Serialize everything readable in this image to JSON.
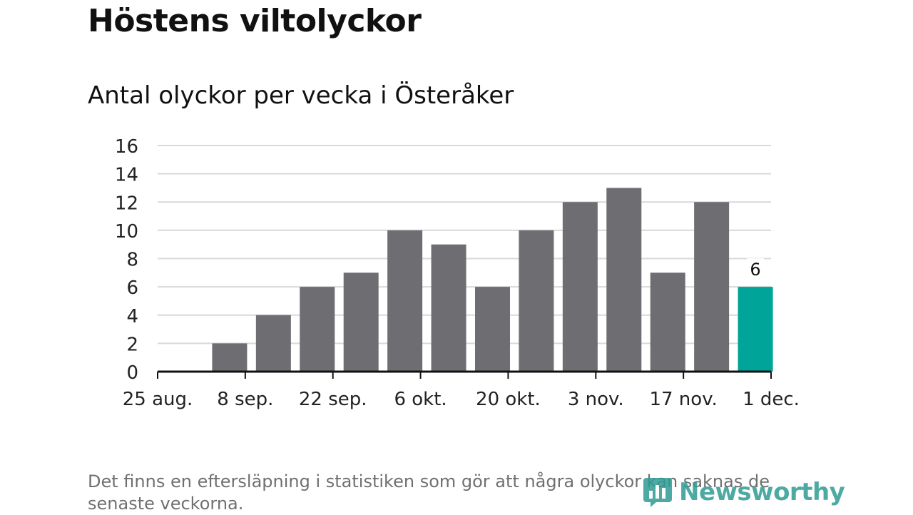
{
  "header": {
    "title": "Höstens viltolyckor",
    "subtitle": "Antal olyckor per vecka i Österåker"
  },
  "footnote": "Det finns en eftersläpning i statistiken som gör att några olyckor kan saknas de senaste veckorna.",
  "logo": {
    "text": "Newsworthy",
    "icon": "newsworthy-logo-icon"
  },
  "colors": {
    "bar": "#6e6d72",
    "highlight": "#00a499",
    "grid": "#d9d9d9",
    "axis": "#111111",
    "logo": "#2e9c93"
  },
  "chart_data": {
    "type": "bar",
    "title": "Antal olyckor per vecka i Österåker",
    "xlabel": "",
    "ylabel": "",
    "x_axis": {
      "type": "date",
      "range": [
        "2019-08-25",
        "2019-12-01"
      ],
      "ticks": [
        {
          "date": "2019-08-25",
          "label": "25 aug."
        },
        {
          "date": "2019-09-08",
          "label": "8 sep."
        },
        {
          "date": "2019-09-22",
          "label": "22 sep."
        },
        {
          "date": "2019-10-06",
          "label": "6 okt."
        },
        {
          "date": "2019-10-20",
          "label": "20 okt."
        },
        {
          "date": "2019-11-03",
          "label": "3 nov."
        },
        {
          "date": "2019-11-17",
          "label": "17 nov."
        },
        {
          "date": "2019-12-01",
          "label": "1 dec."
        }
      ]
    },
    "y_axis": {
      "range": [
        0,
        16
      ],
      "ticks": [
        0,
        2,
        4,
        6,
        8,
        10,
        12,
        14,
        16
      ]
    },
    "grid": true,
    "bars": [
      {
        "week_start": "2019-08-26",
        "value": 0
      },
      {
        "week_start": "2019-09-02",
        "value": 2
      },
      {
        "week_start": "2019-09-09",
        "value": 4
      },
      {
        "week_start": "2019-09-16",
        "value": 6
      },
      {
        "week_start": "2019-09-23",
        "value": 7
      },
      {
        "week_start": "2019-09-30",
        "value": 10
      },
      {
        "week_start": "2019-10-07",
        "value": 9
      },
      {
        "week_start": "2019-10-14",
        "value": 6
      },
      {
        "week_start": "2019-10-21",
        "value": 10
      },
      {
        "week_start": "2019-10-28",
        "value": 12
      },
      {
        "week_start": "2019-11-04",
        "value": 13
      },
      {
        "week_start": "2019-11-11",
        "value": 7
      },
      {
        "week_start": "2019-11-18",
        "value": 12
      },
      {
        "week_start": "2019-11-25",
        "value": 6,
        "highlight": true,
        "data_label": "6"
      }
    ]
  }
}
